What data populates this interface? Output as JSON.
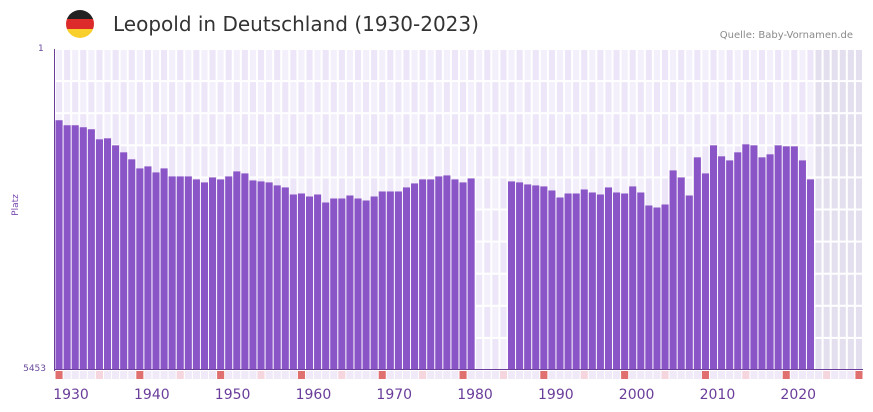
{
  "header": {
    "title": "Leopold in Deutschland (1930-2023)",
    "source": "Quelle: Baby-Vornamen.de",
    "flag_colors": [
      "#222222",
      "#dd2a2a",
      "#f9cf2b"
    ]
  },
  "axis": {
    "y_top_label": "1",
    "y_bottom_label": "5453",
    "y_title": "Platz",
    "x_ticks": [
      "1930",
      "1940",
      "1950",
      "1960",
      "1970",
      "1980",
      "1990",
      "2000",
      "2010",
      "2020"
    ]
  },
  "colors": {
    "bar": "#8a55c6",
    "axis": "#6a3d9a",
    "grid_bg_a": "#f3effb",
    "grid_bg_b": "#ece6f8",
    "future_bg": "#e3dfee",
    "marker_strong": "#e07070",
    "marker_light": "#f6d6de",
    "marker_base": "#efe9f8"
  },
  "chart_data": {
    "type": "bar",
    "title": "Leopold in Deutschland (1930-2023)",
    "xlabel": "",
    "ylabel": "Platz",
    "y_inverted": true,
    "ylim": [
      1,
      5453
    ],
    "x_range": [
      1930,
      2029
    ],
    "grid": true,
    "legend": null,
    "annotations": [
      "Quelle: Baby-Vornamen.de"
    ],
    "categories": [
      1930,
      1931,
      1932,
      1933,
      1934,
      1935,
      1936,
      1937,
      1938,
      1939,
      1940,
      1941,
      1942,
      1943,
      1944,
      1945,
      1946,
      1947,
      1948,
      1949,
      1950,
      1951,
      1952,
      1953,
      1954,
      1955,
      1956,
      1957,
      1958,
      1959,
      1960,
      1961,
      1962,
      1963,
      1964,
      1965,
      1966,
      1967,
      1968,
      1969,
      1970,
      1971,
      1972,
      1973,
      1974,
      1975,
      1976,
      1977,
      1978,
      1979,
      1980,
      1981,
      1982,
      1983,
      1984,
      1985,
      1986,
      1987,
      1988,
      1989,
      1990,
      1991,
      1992,
      1993,
      1994,
      1995,
      1996,
      1997,
      1998,
      1999,
      2000,
      2001,
      2002,
      2003,
      2004,
      2005,
      2006,
      2007,
      2008,
      2009,
      2010,
      2011,
      2012,
      2013,
      2014,
      2015,
      2016,
      2017,
      2018,
      2019,
      2020,
      2021,
      2022,
      2023
    ],
    "values": [
      1211,
      1296,
      1296,
      1330,
      1364,
      1535,
      1518,
      1637,
      1756,
      1875,
      2029,
      1995,
      2097,
      2029,
      2165,
      2165,
      2165,
      2216,
      2267,
      2182,
      2216,
      2165,
      2080,
      2114,
      2233,
      2250,
      2267,
      2318,
      2352,
      2472,
      2455,
      2506,
      2472,
      2608,
      2540,
      2540,
      2489,
      2540,
      2574,
      2506,
      2421,
      2421,
      2421,
      2352,
      2284,
      2216,
      2216,
      2165,
      2148,
      2216,
      2267,
      2199,
      null,
      null,
      null,
      null,
      2250,
      2267,
      2301,
      2318,
      2335,
      2404,
      2523,
      2455,
      2455,
      2387,
      2438,
      2472,
      2352,
      2438,
      2455,
      2335,
      2438,
      2659,
      2693,
      2642,
      2063,
      2182,
      2489,
      1841,
      2114,
      1637,
      1824,
      1893,
      1756,
      1620,
      1637,
      1841,
      1790,
      1637,
      1654,
      1654,
      1893,
      2216
    ]
  }
}
